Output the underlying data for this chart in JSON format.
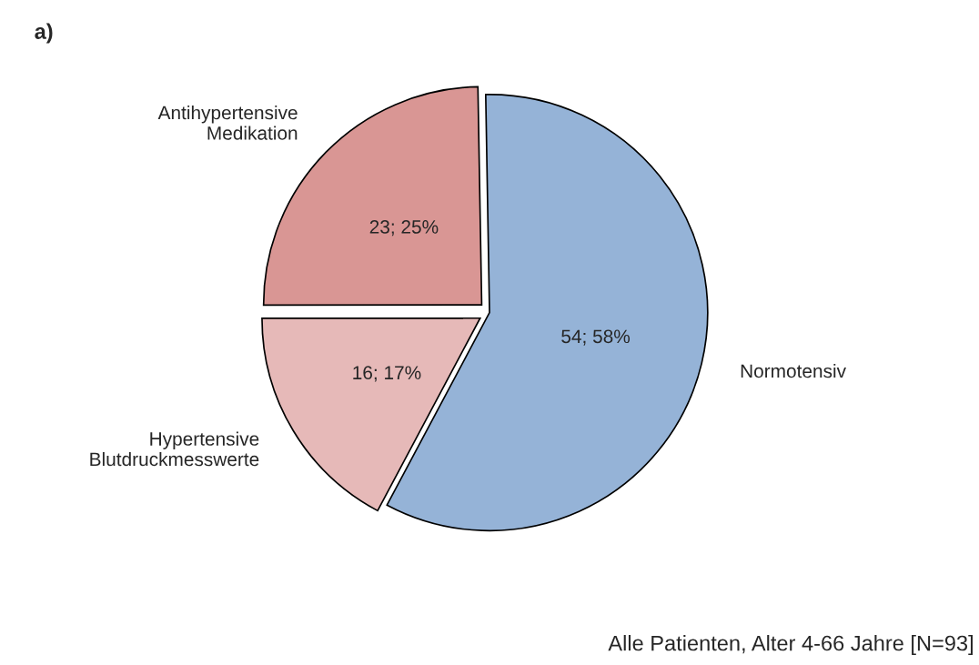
{
  "chart_data": {
    "type": "pie",
    "title": "a)",
    "categories": [
      "Normotensiv",
      "Hypertensive\nBlutdruckmesswerte",
      "Antihypertensive\nMedikation"
    ],
    "values": [
      54,
      16,
      23
    ],
    "value_labels": [
      "54; 58%",
      "16; 17%",
      "23; 25%"
    ],
    "colors": [
      "#95b3d7",
      "#e6b9b8",
      "#d99694"
    ],
    "annotations": [
      "Alle Patienten, Alter 4-66 Jahre [N=93]"
    ]
  }
}
